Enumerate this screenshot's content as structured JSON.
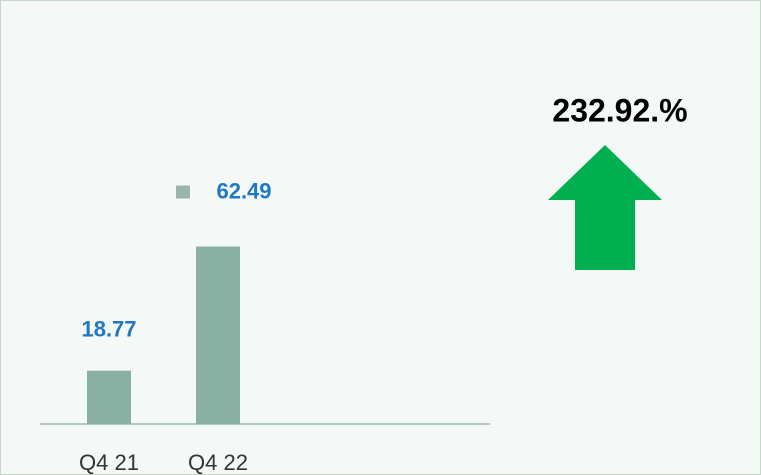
{
  "chart_data": {
    "type": "bar",
    "categories": [
      "Q4 21",
      "Q4 22"
    ],
    "values": [
      18.77,
      62.49
    ],
    "color": "#8aafa3",
    "label_color": "#1f78c1",
    "change_label": "232.92.%",
    "arrow_color": "#00b050"
  }
}
